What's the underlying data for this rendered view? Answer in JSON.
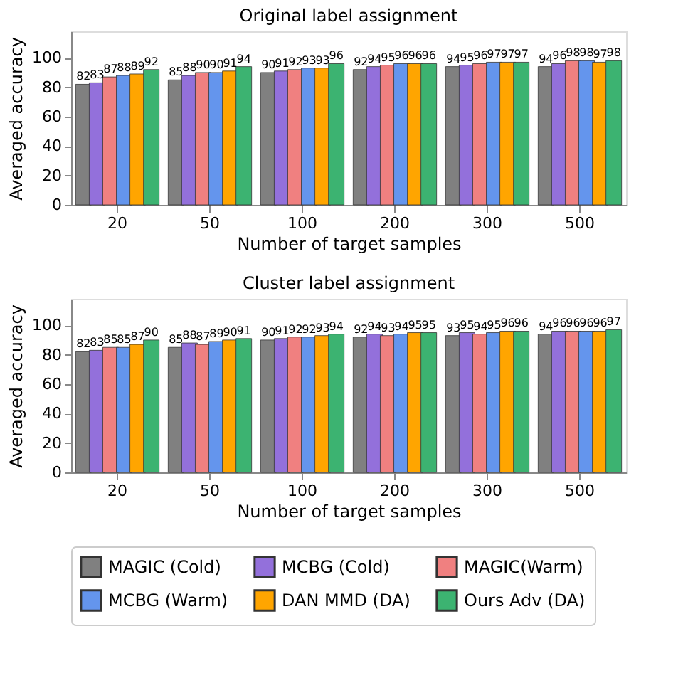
{
  "chart_data": [
    {
      "type": "bar",
      "title": "Original label assignment",
      "xlabel": "Number of target samples",
      "ylabel": "Averaged accuracy",
      "categories": [
        "20",
        "50",
        "100",
        "200",
        "300",
        "500"
      ],
      "ylim": [
        0,
        118
      ],
      "yticks": [
        0,
        20,
        40,
        60,
        80,
        100
      ],
      "data_labels": true,
      "legend": "bottom",
      "grid": false,
      "series": [
        {
          "name": "MAGIC (Cold)",
          "color": "#808080",
          "values": [
            82,
            85,
            90,
            92,
            94,
            94
          ]
        },
        {
          "name": "MCBG (Cold)",
          "color": "#9370db",
          "values": [
            83,
            88,
            91,
            94,
            95,
            96
          ]
        },
        {
          "name": "MAGIC(Warm)",
          "color": "#f08080",
          "values": [
            87,
            90,
            92,
            95,
            96,
            98
          ]
        },
        {
          "name": "MCBG (Warm)",
          "color": "#6495ed",
          "values": [
            88,
            90,
            93,
            96,
            97,
            98
          ]
        },
        {
          "name": "DAN MMD (DA)",
          "color": "#ffa500",
          "values": [
            89,
            91,
            93,
            96,
            97,
            97
          ]
        },
        {
          "name": "Ours Adv (DA)",
          "color": "#3cb371",
          "values": [
            92,
            94,
            96,
            96,
            97,
            98
          ]
        }
      ]
    },
    {
      "type": "bar",
      "title": "Cluster label assignment",
      "xlabel": "Number of target samples",
      "ylabel": "Averaged accuracy",
      "categories": [
        "20",
        "50",
        "100",
        "200",
        "300",
        "500"
      ],
      "ylim": [
        0,
        118
      ],
      "yticks": [
        0,
        20,
        40,
        60,
        80,
        100
      ],
      "data_labels": true,
      "legend": "bottom",
      "grid": false,
      "series": [
        {
          "name": "MAGIC (Cold)",
          "color": "#808080",
          "values": [
            82,
            85,
            90,
            92,
            93,
            94
          ]
        },
        {
          "name": "MCBG (Cold)",
          "color": "#9370db",
          "values": [
            83,
            88,
            91,
            94,
            95,
            96
          ]
        },
        {
          "name": "MAGIC(Warm)",
          "color": "#f08080",
          "values": [
            85,
            87,
            92,
            93,
            94,
            96
          ]
        },
        {
          "name": "MCBG (Warm)",
          "color": "#6495ed",
          "values": [
            85,
            89,
            92,
            94,
            95,
            96
          ]
        },
        {
          "name": "DAN MMD (DA)",
          "color": "#ffa500",
          "values": [
            87,
            90,
            93,
            95,
            96,
            96
          ]
        },
        {
          "name": "Ours Adv (DA)",
          "color": "#3cb371",
          "values": [
            90,
            91,
            94,
            95,
            96,
            97
          ]
        }
      ]
    }
  ]
}
